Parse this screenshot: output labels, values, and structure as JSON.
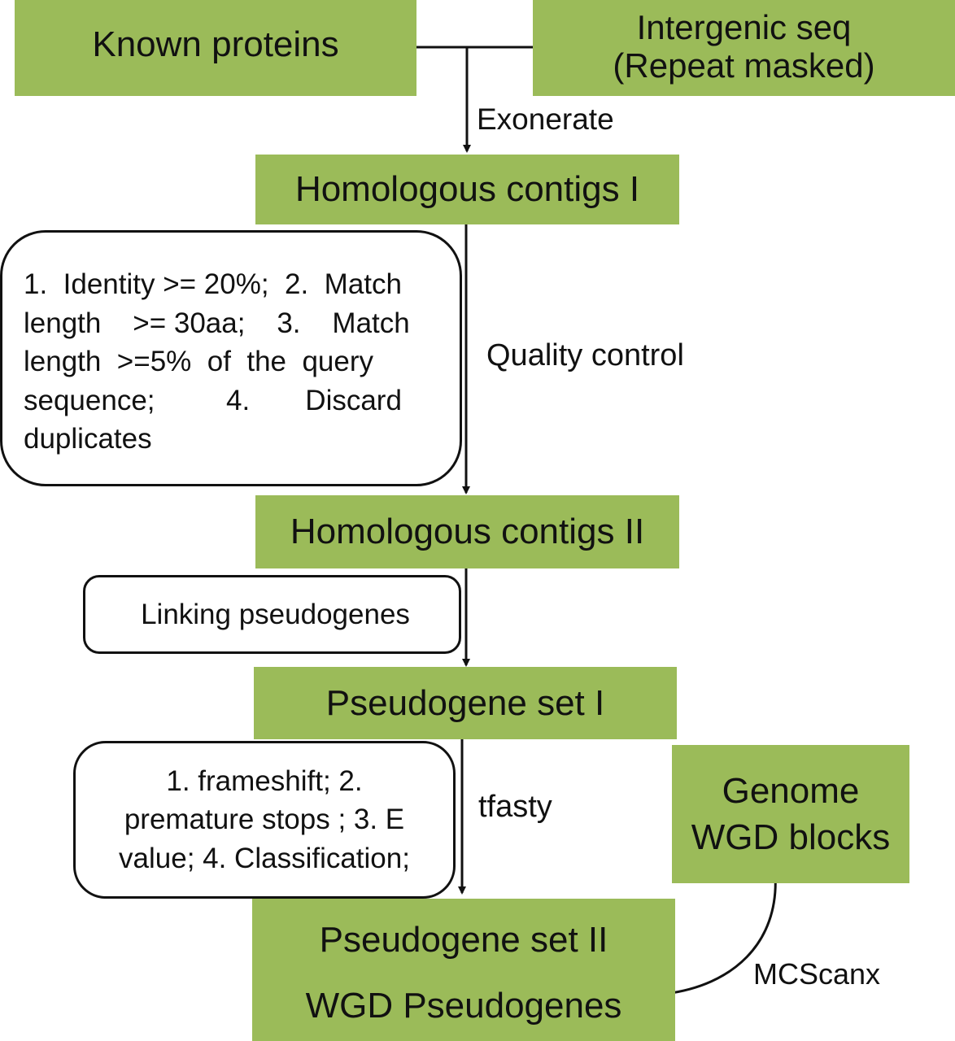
{
  "nodes": {
    "known_proteins": "Known proteins",
    "intergenic_line1": "Intergenic seq",
    "intergenic_line2": "(Repeat masked)",
    "homologous_contigs_1": "Homologous contigs I",
    "homologous_contigs_2": "Homologous contigs II",
    "pseudogene_set_1": "Pseudogene set I",
    "pseudogene_set_2": "Pseudogene set II",
    "wgd_pseudogenes": "WGD Pseudogenes",
    "genome_line1": "Genome",
    "genome_line2": "WGD blocks"
  },
  "notes": {
    "quality_criteria": [
      "1.  Identity >= 20%;  2.  Match",
      "length    >= 30aa;    3.    Match",
      "length  >=5%  of  the  query",
      "sequence;         4.       Discard",
      "duplicates"
    ],
    "linking": "Linking pseudogenes",
    "tfasty_criteria": [
      "1. frameshift; 2.",
      "premature stops ; 3. E",
      "value; 4. Classification;"
    ]
  },
  "steps": {
    "exonerate": "Exonerate",
    "quality_control": "Quality control",
    "tfasty": "tfasty",
    "mcscanx": "MCScanx"
  },
  "colors": {
    "node_fill": "#9bbb59",
    "line": "#111111"
  }
}
